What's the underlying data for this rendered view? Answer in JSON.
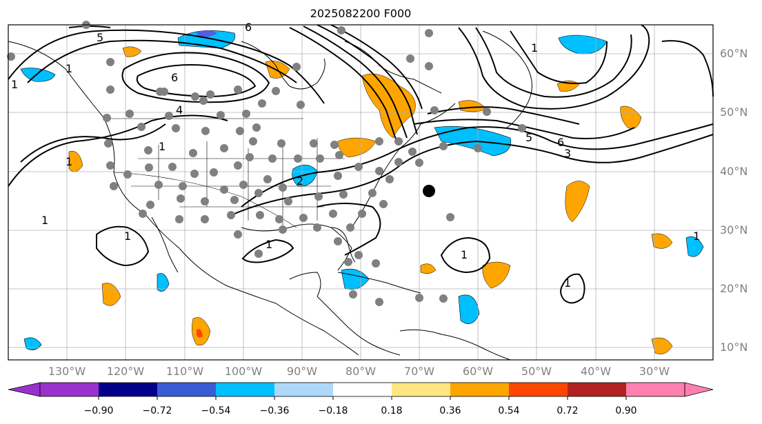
{
  "title": "2025082200 F000",
  "map": {
    "projection": "lat-lon",
    "lon_range": [
      -138,
      -18
    ],
    "lat_range": [
      7,
      64
    ],
    "lat_labels": [
      "60°N",
      "50°N",
      "40°N",
      "30°N",
      "20°N",
      "10°N"
    ],
    "lon_labels": [
      "130°W",
      "120°W",
      "110°W",
      "100°W",
      "90°W",
      "80°W",
      "70°W",
      "60°W",
      "50°W",
      "40°W",
      "30°W"
    ],
    "contour_labels": [
      "5",
      "6",
      "1",
      "1",
      "6",
      "4",
      "1",
      "1",
      "1",
      "2",
      "1",
      "1",
      "1",
      "1",
      "6",
      "5",
      "3",
      "1",
      "1"
    ],
    "grid": true,
    "marker_large_dot": "black-dot",
    "station_dot_color": "#808080"
  },
  "colorbar": {
    "ticks": [
      "−0.90",
      "−0.72",
      "−0.54",
      "−0.36",
      "−0.18",
      "0.18",
      "0.36",
      "0.54",
      "0.72",
      "0.90"
    ],
    "colors": [
      "#9932cc",
      "#00008b",
      "#3a5bd6",
      "#00bfff",
      "#add8fa",
      "#ffffff",
      "#ffe680",
      "#ffa500",
      "#ff4500",
      "#b22222",
      "#ff80b0"
    ],
    "extend": "both"
  }
}
